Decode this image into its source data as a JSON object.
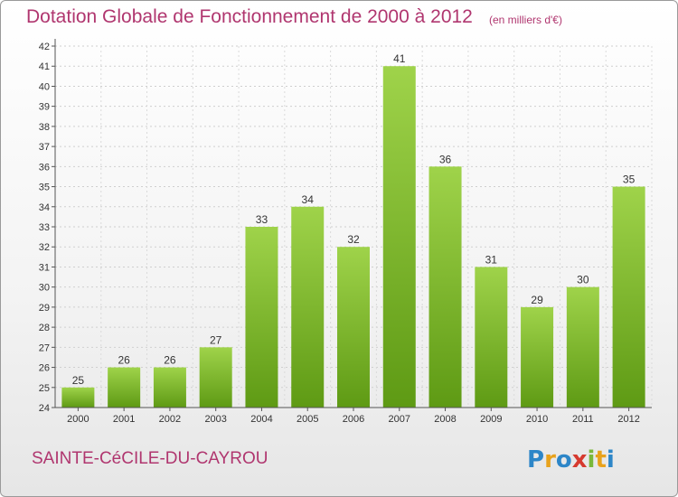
{
  "header": {
    "title": "Dotation Globale de Fonctionnement de 2000 à 2012",
    "unit": "(en milliers d'€)"
  },
  "footer": {
    "town": "SAINTE-CéCILE-DU-CAYROU",
    "logo_text": "Proxiti"
  },
  "colors": {
    "title": "#b0366f",
    "bar_top": "#9fd34a",
    "bar_bottom": "#5e9a14"
  },
  "chart_data": {
    "type": "bar",
    "categories": [
      "2000",
      "2001",
      "2002",
      "2003",
      "2004",
      "2005",
      "2006",
      "2007",
      "2008",
      "2009",
      "2010",
      "2011",
      "2012"
    ],
    "values": [
      25,
      26,
      26,
      27,
      33,
      34,
      32,
      41,
      36,
      31,
      29,
      30,
      35
    ],
    "title": "Dotation Globale de Fonctionnement de 2000 à 2012",
    "ylim": [
      24,
      42
    ],
    "yticks": [
      24,
      25,
      26,
      27,
      28,
      29,
      30,
      31,
      32,
      33,
      34,
      35,
      36,
      37,
      38,
      39,
      40,
      41,
      42
    ],
    "grid": true
  }
}
